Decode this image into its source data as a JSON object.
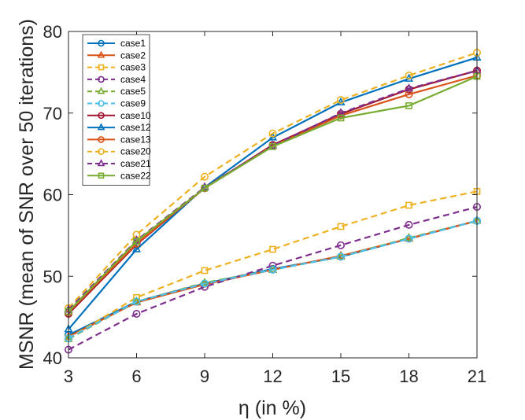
{
  "chart_data": {
    "type": "line",
    "title": "",
    "xlabel": "η (in %)",
    "ylabel": "MSNR (mean of SNR over 50 iterations)",
    "x": [
      3,
      6,
      9,
      12,
      15,
      18,
      21
    ],
    "xticks": [
      "3",
      "6",
      "9",
      "12",
      "15",
      "18",
      "21"
    ],
    "yticks": [
      "40",
      "50",
      "60",
      "70",
      "80"
    ],
    "xlim": [
      3,
      21
    ],
    "ylim": [
      40,
      80
    ],
    "grid": false,
    "legend_position": "top-left",
    "series": [
      {
        "name": "case1",
        "color": "#0072BD",
        "dash": "solid",
        "marker": "circle",
        "values": [
          42.8,
          46.9,
          49.1,
          50.9,
          52.4,
          54.6,
          56.8
        ]
      },
      {
        "name": "case2",
        "color": "#D95319",
        "dash": "solid",
        "marker": "triangle",
        "values": [
          42.6,
          46.8,
          49.0,
          50.8,
          52.5,
          54.6,
          56.8
        ]
      },
      {
        "name": "case3",
        "color": "#EDB120",
        "dash": "dashed",
        "marker": "square",
        "values": [
          42.4,
          47.4,
          50.7,
          53.3,
          56.1,
          58.7,
          60.4
        ]
      },
      {
        "name": "case4",
        "color": "#7E2F8E",
        "dash": "dashed",
        "marker": "circle",
        "values": [
          41.0,
          45.4,
          48.7,
          51.3,
          53.8,
          56.3,
          58.5
        ]
      },
      {
        "name": "case5",
        "color": "#77AC30",
        "dash": "dashed",
        "marker": "triangle",
        "values": [
          42.3,
          46.9,
          49.2,
          50.8,
          52.4,
          54.7,
          56.8
        ]
      },
      {
        "name": "case9",
        "color": "#4DBEEE",
        "dash": "dashed",
        "marker": "circle",
        "values": [
          42.4,
          46.9,
          49.1,
          50.8,
          52.4,
          54.6,
          56.8
        ]
      },
      {
        "name": "case10",
        "color": "#A2142F",
        "dash": "solid",
        "marker": "circle",
        "values": [
          45.4,
          53.9,
          60.8,
          66.1,
          69.9,
          72.9,
          75.2
        ]
      },
      {
        "name": "case12",
        "color": "#0072BD",
        "dash": "solid",
        "marker": "triangle",
        "values": [
          43.5,
          53.3,
          60.9,
          67.0,
          71.3,
          74.2,
          76.8
        ]
      },
      {
        "name": "case13",
        "color": "#D95319",
        "dash": "solid",
        "marker": "circle",
        "values": [
          45.6,
          54.0,
          60.8,
          66.0,
          69.7,
          72.3,
          74.6
        ]
      },
      {
        "name": "case20",
        "color": "#EDB120",
        "dash": "dashed",
        "marker": "circle",
        "values": [
          46.1,
          55.1,
          62.2,
          67.5,
          71.6,
          74.6,
          77.4
        ]
      },
      {
        "name": "case21",
        "color": "#7E2F8E",
        "dash": "dashed",
        "marker": "triangle",
        "values": [
          45.9,
          54.4,
          60.9,
          66.0,
          70.0,
          73.0,
          75.2
        ]
      },
      {
        "name": "case22",
        "color": "#77AC30",
        "dash": "solid",
        "marker": "square",
        "values": [
          45.7,
          54.3,
          60.8,
          65.9,
          69.4,
          70.9,
          74.5
        ]
      }
    ]
  }
}
